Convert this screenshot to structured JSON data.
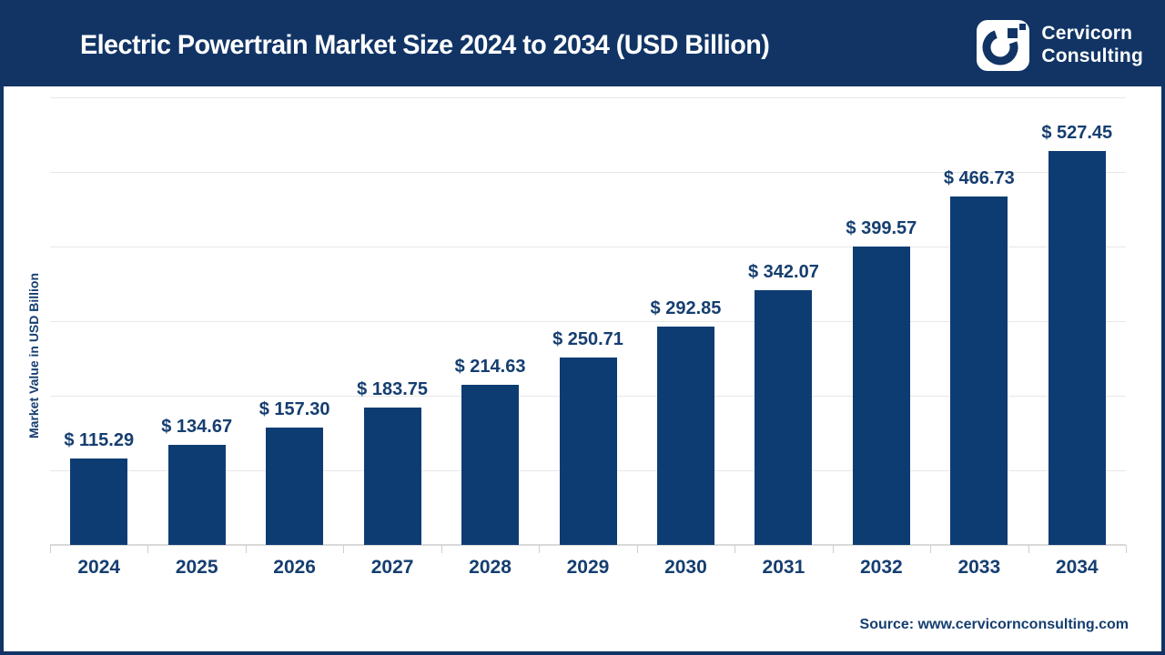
{
  "header": {
    "title": "Electric Powertrain Market Size 2024 to 2034 (USD Billion)",
    "brand": {
      "line1": "Cervicorn",
      "line2": "Consulting"
    }
  },
  "colors": {
    "navy_header": "#113465",
    "bar_fill": "#0d3c72",
    "label_text": "#153e70",
    "gridline": "#e7e7e7",
    "axis_line": "#d9d9d9",
    "title_text": "#ffffff"
  },
  "chart_data": {
    "type": "bar",
    "title": "Electric Powertrain Market Size 2024 to 2034 (USD Billion)",
    "categories": [
      "2024",
      "2025",
      "2026",
      "2027",
      "2028",
      "2029",
      "2030",
      "2031",
      "2032",
      "2033",
      "2034"
    ],
    "values": [
      115.29,
      134.67,
      157.3,
      183.75,
      214.63,
      250.71,
      292.85,
      342.07,
      399.57,
      466.73,
      527.45
    ],
    "labels": [
      "$ 115.29",
      "$ 134.67",
      "$ 157.30",
      "$ 183.75",
      "$ 214.63",
      "$ 250.71",
      "$ 292.85",
      "$ 342.07",
      "$ 399.57",
      "$ 466.73",
      "$ 527.45"
    ],
    "xlabel": "",
    "ylabel": "Market Value in USD Billion",
    "ylim": [
      0,
      600
    ],
    "grid_step": 100,
    "grid": true,
    "legend": false,
    "data_label_prefix": "$ "
  },
  "footer": {
    "source": "Source: www.cervicornconsulting.com"
  }
}
